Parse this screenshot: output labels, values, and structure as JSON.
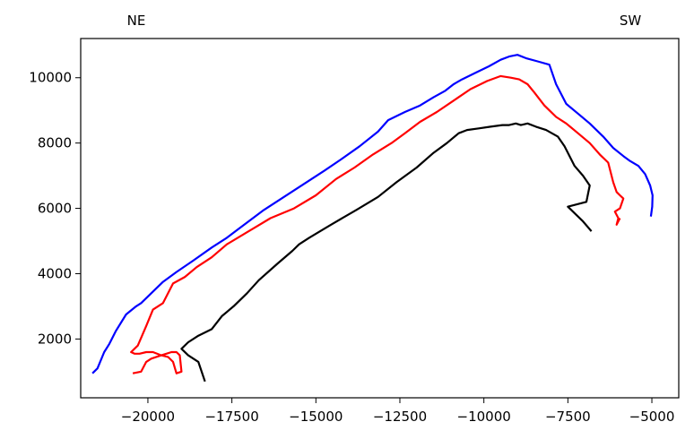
{
  "chart_data": {
    "type": "line",
    "title": "",
    "xlabel": "",
    "ylabel": "",
    "annotations": {
      "left": "NE",
      "right": "SW"
    },
    "xlim": [
      -22000,
      -4200
    ],
    "ylim": [
      200,
      11200
    ],
    "xticks": [
      -20000,
      -17500,
      -15000,
      -12500,
      -10000,
      -7500,
      -5000
    ],
    "xtick_labels": [
      "−20000",
      "−17500",
      "−15000",
      "−12500",
      "−10000",
      "−7500",
      "−5000"
    ],
    "yticks": [
      2000,
      4000,
      6000,
      8000,
      10000
    ],
    "ytick_labels": [
      "2000",
      "4000",
      "6000",
      "8000",
      "10000"
    ],
    "grid": false,
    "series": [
      {
        "color": "#0000ff",
        "x": [
          -21650,
          -21500,
          -21300,
          -21150,
          -20950,
          -20650,
          -20350,
          -20200,
          -19900,
          -19550,
          -19150,
          -18650,
          -18100,
          -17650,
          -17200,
          -16550,
          -15950,
          -15350,
          -14750,
          -14250,
          -13700,
          -13150,
          -12850,
          -12350,
          -11900,
          -11500,
          -11150,
          -10900,
          -10650,
          -10250,
          -9850,
          -9500,
          -9250,
          -9000,
          -8750,
          -8400,
          -8050,
          -7850,
          -7550,
          -7200,
          -6850,
          -6450,
          -6150,
          -5850,
          -5650,
          -5400,
          -5200,
          -5050,
          -4980,
          -4990,
          -5030
        ],
        "y": [
          950,
          1100,
          1600,
          1850,
          2250,
          2750,
          3000,
          3100,
          3400,
          3750,
          4050,
          4400,
          4800,
          5100,
          5450,
          5950,
          6350,
          6750,
          7150,
          7500,
          7900,
          8350,
          8700,
          8950,
          9150,
          9400,
          9600,
          9800,
          9950,
          10150,
          10350,
          10550,
          10650,
          10700,
          10600,
          10500,
          10400,
          9800,
          9200,
          8900,
          8600,
          8200,
          7850,
          7600,
          7450,
          7300,
          7050,
          6700,
          6400,
          6050,
          5750
        ]
      },
      {
        "color": "#ff0000",
        "x": [
          -20450,
          -20200,
          -20050,
          -19900,
          -19750,
          -19600,
          -19450,
          -19300,
          -19150,
          -19050,
          -19000,
          -19150,
          -19250,
          -19400,
          -19600,
          -19850,
          -20050,
          -20250,
          -20400,
          -20500,
          -20300,
          -20050,
          -19850,
          -19550,
          -19250,
          -18900,
          -18550,
          -18100,
          -17650,
          -17000,
          -16350,
          -15650,
          -15000,
          -14400,
          -13850,
          -13300,
          -12750,
          -12350,
          -11900,
          -11400,
          -10900,
          -10400,
          -9900,
          -9500,
          -9200,
          -8950,
          -8700,
          -8500,
          -8200,
          -7850,
          -7550,
          -7200,
          -6850,
          -6550,
          -6300,
          -6150,
          -6050,
          -5950,
          -5850,
          -5950,
          -6100,
          -6000,
          -6050,
          -5950
        ],
        "y": [
          950,
          1000,
          1300,
          1400,
          1450,
          1500,
          1550,
          1600,
          1600,
          1500,
          1000,
          950,
          1300,
          1450,
          1500,
          1600,
          1600,
          1550,
          1550,
          1600,
          1800,
          2400,
          2900,
          3100,
          3700,
          3900,
          4200,
          4500,
          4900,
          5300,
          5700,
          6000,
          6400,
          6900,
          7250,
          7650,
          8000,
          8300,
          8650,
          8950,
          9300,
          9650,
          9900,
          10050,
          10000,
          9950,
          9800,
          9550,
          9150,
          8800,
          8600,
          8300,
          8000,
          7650,
          7400,
          6800,
          6500,
          6400,
          6300,
          6000,
          5900,
          5700,
          5500,
          5700
        ]
      },
      {
        "color": "#000000",
        "x": [
          -18300,
          -18500,
          -18800,
          -19000,
          -18800,
          -18500,
          -18100,
          -17800,
          -17450,
          -17050,
          -16700,
          -16150,
          -15700,
          -15500,
          -15200,
          -14550,
          -13800,
          -13150,
          -12600,
          -12000,
          -11500,
          -11100,
          -10750,
          -10500,
          -10150,
          -9800,
          -9450,
          -9250,
          -9050,
          -8900,
          -8700,
          -8450,
          -8150,
          -7800,
          -7600,
          -7450,
          -7300,
          -7050,
          -6850,
          -6950,
          -7500,
          -7350,
          -7050,
          -6800
        ],
        "y": [
          700,
          1300,
          1500,
          1700,
          1900,
          2100,
          2300,
          2700,
          3000,
          3400,
          3800,
          4300,
          4700,
          4900,
          5100,
          5500,
          5950,
          6350,
          6800,
          7250,
          7700,
          8000,
          8300,
          8400,
          8450,
          8500,
          8550,
          8550,
          8600,
          8550,
          8600,
          8500,
          8400,
          8200,
          7900,
          7600,
          7300,
          7000,
          6700,
          6200,
          6050,
          5900,
          5600,
          5300
        ]
      }
    ]
  }
}
